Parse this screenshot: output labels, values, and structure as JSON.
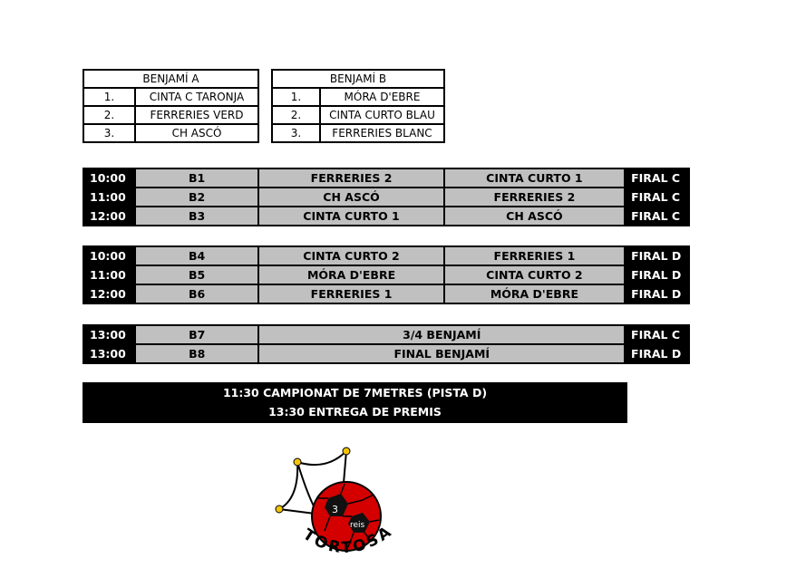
{
  "groups": [
    {
      "title": "BENJAMÍ A",
      "rows": [
        {
          "pos": "1.",
          "team": "CINTA C TARONJA"
        },
        {
          "pos": "2.",
          "team": "FERRERIES VERD"
        },
        {
          "pos": "3.",
          "team": "CH ASCÓ"
        }
      ]
    },
    {
      "title": "BENJAMÍ B",
      "rows": [
        {
          "pos": "1.",
          "team": "MÓRA D'EBRE"
        },
        {
          "pos": "2.",
          "team": "CINTA CURTO BLAU"
        },
        {
          "pos": "3.",
          "team": "FERRERIES BLANC"
        }
      ]
    }
  ],
  "schedule": [
    [
      {
        "time": "10:00",
        "code": "B1",
        "home": "FERRERIES 2",
        "away": "CINTA CURTO 1",
        "court": "FIRAL C"
      },
      {
        "time": "11:00",
        "code": "B2",
        "home": "CH ASCÓ",
        "away": "FERRERIES 2",
        "court": "FIRAL C"
      },
      {
        "time": "12:00",
        "code": "B3",
        "home": "CINTA CURTO 1",
        "away": "CH ASCÓ",
        "court": "FIRAL C"
      }
    ],
    [
      {
        "time": "10:00",
        "code": "B4",
        "home": "CINTA CURTO 2",
        "away": "FERRERIES 1",
        "court": "FIRAL D"
      },
      {
        "time": "11:00",
        "code": "B5",
        "home": "MÓRA D'EBRE",
        "away": "CINTA CURTO 2",
        "court": "FIRAL D"
      },
      {
        "time": "12:00",
        "code": "B6",
        "home": "FERRERIES 1",
        "away": "MÓRA D'EBRE",
        "court": "FIRAL D"
      }
    ],
    [
      {
        "time": "13:00",
        "code": "B7",
        "match": "3/4 BENJAMÍ",
        "court": "FIRAL C"
      },
      {
        "time": "13:00",
        "code": "B8",
        "match": "FINAL BENJAMÍ",
        "court": "FIRAL D"
      }
    ]
  ],
  "notes": [
    "11:30 CAMPIONAT DE 7METRES (PISTA D)",
    "13:30 ENTREGA DE PREMIS"
  ],
  "logo": {
    "ball_text_1": "3",
    "ball_text_2": "reis",
    "wordmark": "TORTOSA",
    "colors": {
      "ball": "#d40000",
      "knots": "#f5c400"
    }
  }
}
